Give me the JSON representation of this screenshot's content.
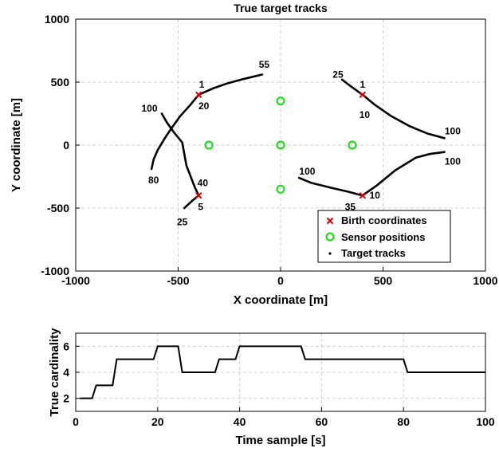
{
  "chart_data": [
    {
      "type": "scatter",
      "title": "True target tracks",
      "xlabel": "X coordinate [m]",
      "ylabel": "Y coordinate [m]",
      "xlim": [
        -1000,
        1000
      ],
      "ylim": [
        -1000,
        1000
      ],
      "xticks": [
        -1000,
        -500,
        0,
        500,
        1000
      ],
      "yticks": [
        -1000,
        -500,
        0,
        500,
        1000
      ],
      "grid": true,
      "legend_position": "bottom-right",
      "colors": {
        "birth": "#e00000",
        "sensor": "#22dd22",
        "track": "#000000"
      },
      "legend": [
        {
          "key": "birth",
          "label": "Birth coordinates"
        },
        {
          "key": "sensor",
          "label": "Sensor positions"
        },
        {
          "key": "track",
          "label": "Target tracks"
        }
      ],
      "birth_points": [
        {
          "x": -400,
          "y": 400
        },
        {
          "x": 400,
          "y": 400
        },
        {
          "x": -400,
          "y": -400
        },
        {
          "x": 400,
          "y": -400
        }
      ],
      "sensors": [
        {
          "x": 0,
          "y": 350
        },
        {
          "x": -350,
          "y": 0
        },
        {
          "x": 0,
          "y": 0
        },
        {
          "x": 350,
          "y": 0
        },
        {
          "x": 0,
          "y": -350
        }
      ],
      "tracks": [
        {
          "points": [
            [
              -400,
              400
            ],
            [
              -330,
              450
            ],
            [
              -260,
              490
            ],
            [
              -180,
              525
            ],
            [
              -90,
              560
            ]
          ]
        },
        {
          "points": [
            [
              -400,
              400
            ],
            [
              -440,
              320
            ],
            [
              -490,
              230
            ],
            [
              -530,
              140
            ],
            [
              -565,
              55
            ],
            [
              -600,
              -40
            ],
            [
              -620,
              -115
            ],
            [
              -630,
              -190
            ]
          ]
        },
        {
          "points": [
            [
              -580,
              250
            ],
            [
              -555,
              180
            ],
            [
              -520,
              100
            ],
            [
              -480,
              20
            ],
            [
              -460,
              -160
            ],
            [
              -420,
              -330
            ],
            [
              -400,
              -400
            ]
          ]
        },
        {
          "points": [
            [
              -400,
              -400
            ],
            [
              -430,
              -440
            ],
            [
              -470,
              -500
            ]
          ]
        },
        {
          "points": [
            [
              400,
              400
            ],
            [
              460,
              320
            ],
            [
              540,
              230
            ],
            [
              630,
              150
            ],
            [
              720,
              90
            ],
            [
              800,
              55
            ]
          ]
        },
        {
          "points": [
            [
              400,
              400
            ],
            [
              340,
              470
            ],
            [
              300,
              520
            ]
          ]
        },
        {
          "points": [
            [
              400,
              -400
            ],
            [
              470,
              -320
            ],
            [
              560,
              -200
            ],
            [
              660,
              -100
            ],
            [
              730,
              -70
            ],
            [
              800,
              -55
            ]
          ]
        },
        {
          "points": [
            [
              400,
              -400
            ],
            [
              330,
              -370
            ],
            [
              250,
              -340
            ],
            [
              150,
              -300
            ],
            [
              90,
              -260
            ]
          ]
        }
      ],
      "annotations": [
        {
          "text": "1",
          "x": -385,
          "y": 480
        },
        {
          "text": "20",
          "x": -375,
          "y": 310
        },
        {
          "text": "55",
          "x": -80,
          "y": 640
        },
        {
          "text": "100",
          "x": -640,
          "y": 290
        },
        {
          "text": "80",
          "x": -620,
          "y": -280
        },
        {
          "text": "40",
          "x": -380,
          "y": -300
        },
        {
          "text": "5",
          "x": -390,
          "y": -490
        },
        {
          "text": "25",
          "x": -480,
          "y": -610
        },
        {
          "text": "25",
          "x": 280,
          "y": 560
        },
        {
          "text": "1",
          "x": 400,
          "y": 480
        },
        {
          "text": "10",
          "x": 410,
          "y": 240
        },
        {
          "text": "100",
          "x": 840,
          "y": 110
        },
        {
          "text": "100",
          "x": 840,
          "y": -130
        },
        {
          "text": "100",
          "x": 130,
          "y": -210
        },
        {
          "text": "35",
          "x": 340,
          "y": -490
        },
        {
          "text": "10",
          "x": 460,
          "y": -400
        }
      ]
    },
    {
      "type": "line",
      "xlabel": "Time sample [s]",
      "ylabel": "True cardinality",
      "xlim": [
        0,
        100
      ],
      "ylim": [
        1,
        7
      ],
      "xticks": [
        0,
        20,
        40,
        60,
        80,
        100
      ],
      "yticks": [
        2,
        4,
        6
      ],
      "grid": true,
      "x": [
        1,
        4,
        5,
        9,
        10,
        19,
        20,
        25,
        26,
        34,
        35,
        39,
        40,
        55,
        56,
        80,
        81,
        100
      ],
      "y": [
        2,
        2,
        3,
        3,
        5,
        5,
        6,
        6,
        4,
        4,
        5,
        5,
        6,
        6,
        5,
        5,
        4,
        4
      ]
    }
  ]
}
